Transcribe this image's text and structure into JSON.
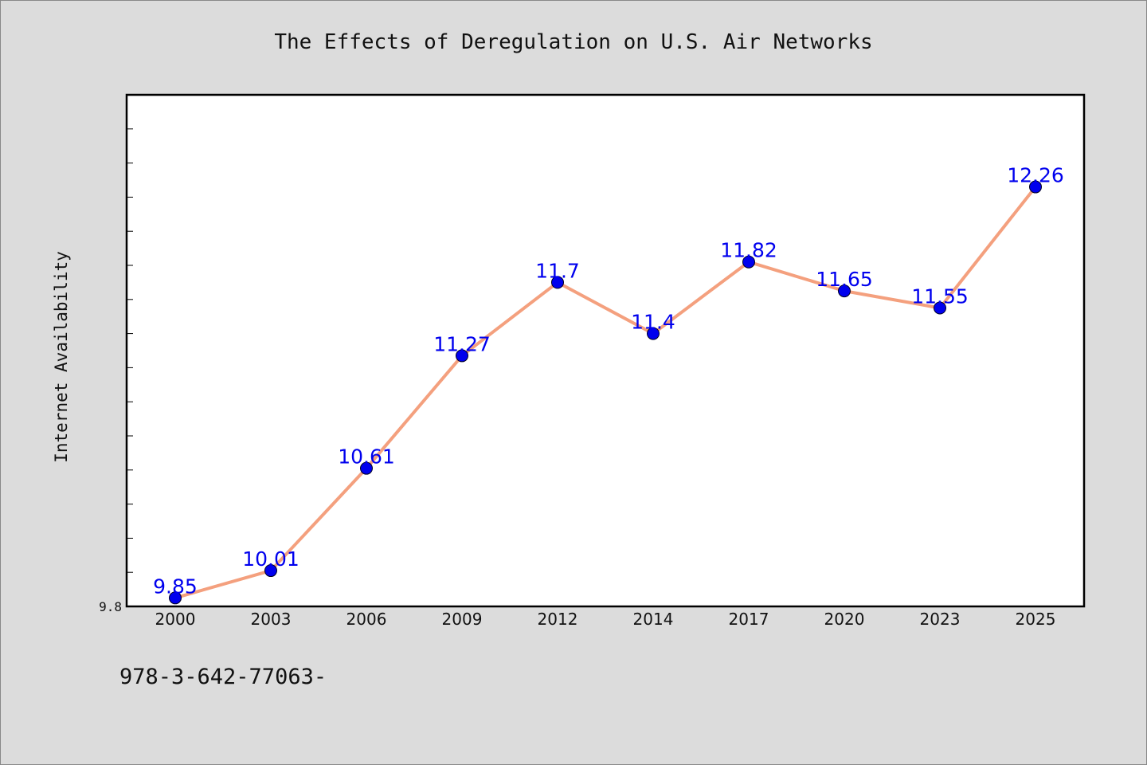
{
  "chart_data": {
    "type": "line",
    "title": "The Effects of Deregulation on U.S. Air Networks",
    "xlabel": "",
    "ylabel": "Internet Availability",
    "categories": [
      "2000",
      "2003",
      "2006",
      "2009",
      "2012",
      "2014",
      "2017",
      "2020",
      "2023",
      "2025"
    ],
    "series": [
      {
        "values": [
          9.85,
          10.01,
          10.61,
          11.27,
          11.7,
          11.4,
          11.82,
          11.65,
          11.55,
          12.26
        ],
        "data_labels": [
          "9.85",
          "10.01",
          "10.61",
          "11.27",
          "11.7",
          "11.4",
          "11.82",
          "11.65",
          "11.55",
          "12.26"
        ]
      }
    ],
    "ylim": [
      9.8,
      12.8
    ],
    "y_tick_labels": [
      "9.8"
    ],
    "y_minor_step": 0.2,
    "grid": false,
    "legend": "none",
    "colors": {
      "line": "#f4a07e",
      "marker": "#0000ee",
      "data_label": "#0000ee",
      "plot_bg": "#ffffff",
      "page_bg": "#dcdcdc"
    }
  },
  "footer": {
    "isbn_text": "978-3-642-77063-"
  }
}
